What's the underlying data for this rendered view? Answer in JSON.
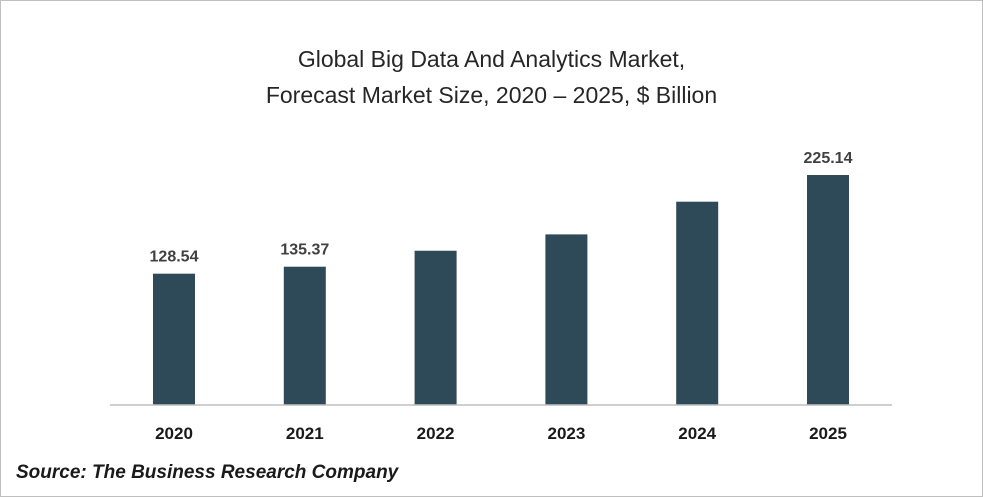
{
  "chart_data": {
    "type": "bar",
    "title_lines": [
      "Global Big Data And Analytics Market,",
      "Forecast Market Size, 2020 – 2025, $ Billion"
    ],
    "categories": [
      "2020",
      "2021",
      "2022",
      "2023",
      "2024",
      "2025"
    ],
    "values": [
      128.54,
      135.37,
      151.0,
      167.0,
      199.0,
      225.14
    ],
    "data_labels": [
      "128.54",
      "135.37",
      "",
      "",
      "",
      "225.14"
    ],
    "xlabel": "",
    "ylabel": "",
    "ylim": [
      0,
      230
    ],
    "grid": false,
    "legend": "none",
    "bar_color": "#2e4a58",
    "axis_color": "#bfbfbf"
  },
  "source": "Source: The Business Research Company"
}
